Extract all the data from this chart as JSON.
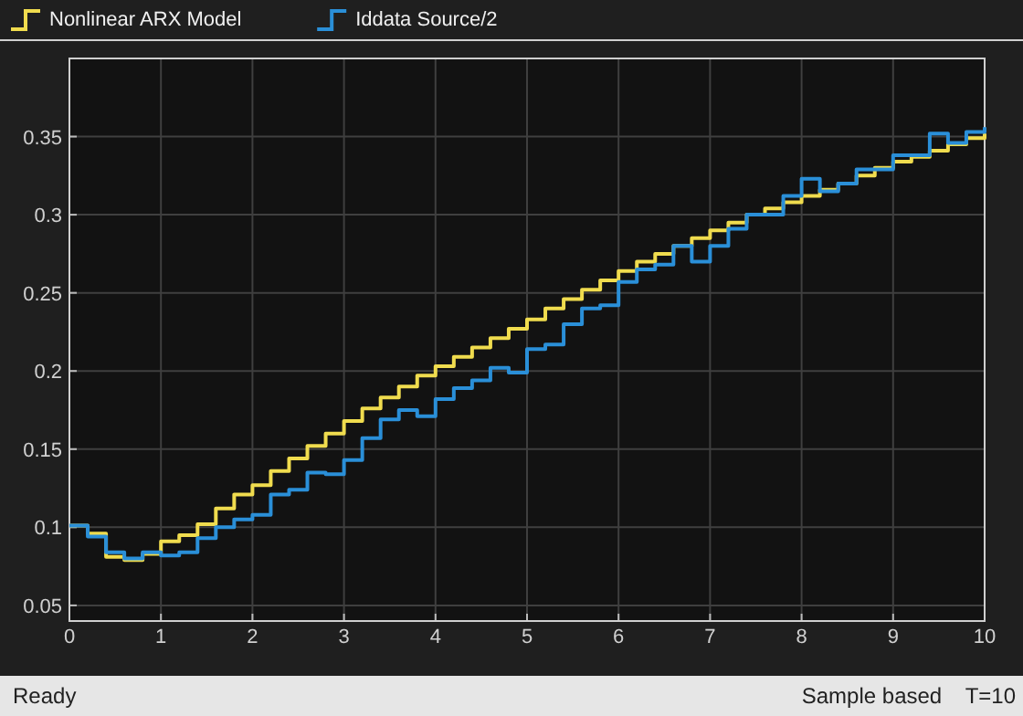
{
  "chart_data": {
    "type": "step",
    "x": [
      0,
      0.2,
      0.4,
      0.6,
      0.8,
      1,
      1.2,
      1.4,
      1.6,
      1.8,
      2,
      2.2,
      2.4,
      2.6,
      2.8,
      3,
      3.2,
      3.4,
      3.6,
      3.8,
      4,
      4.2,
      4.4,
      4.6,
      4.8,
      5,
      5.2,
      5.4,
      5.6,
      5.8,
      6,
      6.2,
      6.4,
      6.6,
      6.8,
      7,
      7.2,
      7.4,
      7.6,
      7.8,
      8,
      8.2,
      8.4,
      8.6,
      8.8,
      9,
      9.2,
      9.4,
      9.6,
      9.8,
      10
    ],
    "series": [
      {
        "name": "Nonlinear ARX Model",
        "color": "#f0dc4e",
        "values": [
          0.101,
          0.096,
          0.081,
          0.079,
          0.083,
          0.091,
          0.095,
          0.102,
          0.112,
          0.121,
          0.127,
          0.136,
          0.144,
          0.152,
          0.16,
          0.168,
          0.176,
          0.183,
          0.19,
          0.197,
          0.203,
          0.209,
          0.215,
          0.221,
          0.227,
          0.233,
          0.24,
          0.246,
          0.252,
          0.258,
          0.264,
          0.27,
          0.275,
          0.28,
          0.285,
          0.29,
          0.295,
          0.3,
          0.304,
          0.308,
          0.312,
          0.316,
          0.32,
          0.325,
          0.33,
          0.334,
          0.337,
          0.341,
          0.345,
          0.349,
          0.352
        ]
      },
      {
        "name": "Iddata Source/2",
        "color": "#2a8fd8",
        "values": [
          0.101,
          0.094,
          0.084,
          0.08,
          0.084,
          0.082,
          0.084,
          0.093,
          0.1,
          0.105,
          0.108,
          0.121,
          0.124,
          0.135,
          0.134,
          0.143,
          0.157,
          0.169,
          0.175,
          0.171,
          0.182,
          0.189,
          0.194,
          0.202,
          0.199,
          0.214,
          0.217,
          0.23,
          0.24,
          0.242,
          0.257,
          0.265,
          0.268,
          0.28,
          0.27,
          0.28,
          0.291,
          0.3,
          0.3,
          0.312,
          0.323,
          0.315,
          0.32,
          0.329,
          0.329,
          0.338,
          0.338,
          0.352,
          0.346,
          0.353,
          0.356
        ]
      }
    ],
    "xlim": [
      0,
      10
    ],
    "xticks": [
      0,
      1,
      2,
      3,
      4,
      5,
      6,
      7,
      8,
      9,
      10
    ],
    "ylim": [
      0.04,
      0.4
    ],
    "yticks": [
      0.05,
      0.1,
      0.15,
      0.2,
      0.25,
      0.3,
      0.35
    ],
    "grid": true,
    "legend": "top left",
    "annotations": [
      "Ready",
      "Sample based",
      "T=10"
    ]
  }
}
